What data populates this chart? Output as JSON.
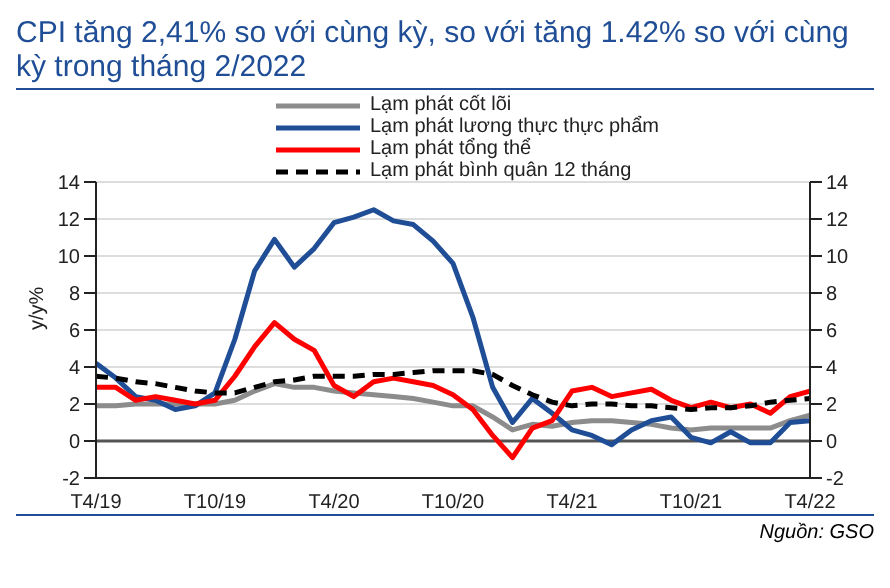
{
  "chart_data": {
    "type": "line",
    "title": "CPI tăng 2,41% so với cùng kỳ, so với tăng 1.42% so với cùng kỳ trong tháng 2/2022",
    "ylabel": "y/y%",
    "annotations": [
      "Nguồn: GSO"
    ],
    "categories": [
      "T4/19",
      null,
      null,
      null,
      null,
      null,
      "T10/19",
      null,
      null,
      null,
      null,
      null,
      "T4/20",
      null,
      null,
      null,
      null,
      null,
      "T10/20",
      null,
      null,
      null,
      null,
      null,
      "T4/21",
      null,
      null,
      null,
      null,
      null,
      "T10/21",
      null,
      null,
      null,
      null,
      null,
      "T4/22"
    ],
    "series": [
      {
        "name": "Lạm phát cốt lõi",
        "color": "#8c8c8c",
        "values": [
          1.9,
          1.9,
          2.0,
          2.0,
          2.0,
          2.0,
          2.0,
          2.2,
          2.7,
          3.1,
          2.9,
          2.9,
          2.7,
          2.6,
          2.5,
          2.4,
          2.3,
          2.1,
          1.9,
          1.9,
          1.3,
          0.6,
          0.9,
          0.8,
          1.0,
          1.1,
          1.1,
          1.0,
          0.9,
          0.7,
          0.6,
          0.7,
          0.7,
          0.7,
          0.7,
          1.1,
          1.4
        ]
      },
      {
        "name": "Lạm phát lương thực thực phẩm",
        "color": "#1f4e96",
        "values": [
          4.2,
          3.4,
          2.4,
          2.2,
          1.7,
          1.9,
          2.6,
          5.5,
          9.2,
          10.9,
          9.4,
          10.4,
          11.8,
          12.1,
          12.5,
          11.9,
          11.7,
          10.8,
          9.6,
          6.7,
          2.9,
          1.0,
          2.3,
          1.5,
          0.6,
          0.3,
          -0.2,
          0.6,
          1.1,
          1.3,
          0.2,
          -0.1,
          0.5,
          -0.1,
          -0.1,
          1.0,
          1.1
        ]
      },
      {
        "name": "Lạm phát tổng thể",
        "color": "#ff0000",
        "values": [
          2.9,
          2.9,
          2.2,
          2.4,
          2.2,
          2.0,
          2.2,
          3.5,
          5.1,
          6.4,
          5.5,
          4.9,
          3.0,
          2.4,
          3.2,
          3.4,
          3.2,
          3.0,
          2.5,
          1.7,
          0.3,
          -0.9,
          0.7,
          1.1,
          2.7,
          2.9,
          2.4,
          2.6,
          2.8,
          2.2,
          1.8,
          2.1,
          1.8,
          2.0,
          1.5,
          2.4,
          2.7
        ]
      },
      {
        "name": "Lạm phát bình quân 12 tháng",
        "color": "#000000",
        "line_style": "dashed",
        "values": [
          3.5,
          3.4,
          3.2,
          3.1,
          2.9,
          2.7,
          2.6,
          2.6,
          2.9,
          3.2,
          3.3,
          3.5,
          3.5,
          3.5,
          3.6,
          3.6,
          3.7,
          3.8,
          3.8,
          3.8,
          3.6,
          3.0,
          2.5,
          2.1,
          1.9,
          2.0,
          2.0,
          1.9,
          1.9,
          1.8,
          1.7,
          1.8,
          1.8,
          1.9,
          2.1,
          2.2,
          2.3
        ]
      }
    ],
    "ylim": [
      -2,
      14
    ],
    "yticks": [
      -2,
      0,
      2,
      4,
      6,
      8,
      10,
      12,
      14
    ],
    "y2lim": [
      -2,
      14
    ],
    "y2ticks": [
      -2,
      0,
      2,
      4,
      6,
      8,
      10,
      12,
      14
    ],
    "grid": "y",
    "legend": "top",
    "marker": "none",
    "line_style": "solid"
  }
}
